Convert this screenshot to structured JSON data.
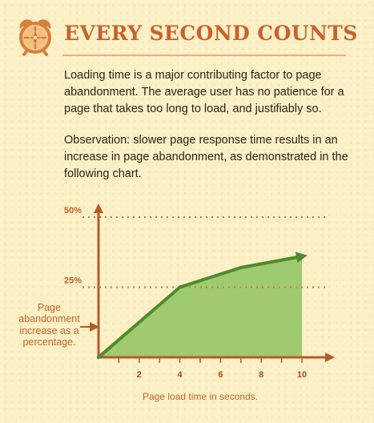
{
  "header": {
    "icon": "alarm-clock-icon",
    "title": "EVERY SECOND COUNTS"
  },
  "body": {
    "paragraph_1": "Loading time is a major contributing factor to page abandonment. The average user has no patience for a page that takes too long to load, and justifiably so.",
    "paragraph_2": "Observation: slower page response time results in an increase in page abandonment, as demonstrated in the following chart."
  },
  "colors": {
    "accent": "#c9622c",
    "area_fill": "#9fca70",
    "line": "#4f8a2c",
    "axis": "#b85a28"
  },
  "chart_data": {
    "type": "area",
    "title": "",
    "xlabel": "Page load time in seconds.",
    "ylabel": "Page abandonment increase as a percentage.",
    "xlim": [
      0,
      11
    ],
    "ylim": [
      0,
      50
    ],
    "x_ticks": [
      2,
      4,
      6,
      8,
      10
    ],
    "y_ticks": [
      {
        "value": 50,
        "label": "50%"
      },
      {
        "value": 25,
        "label": "25%"
      }
    ],
    "x": [
      0,
      4,
      7,
      10
    ],
    "y": [
      0,
      25,
      32,
      36
    ]
  }
}
